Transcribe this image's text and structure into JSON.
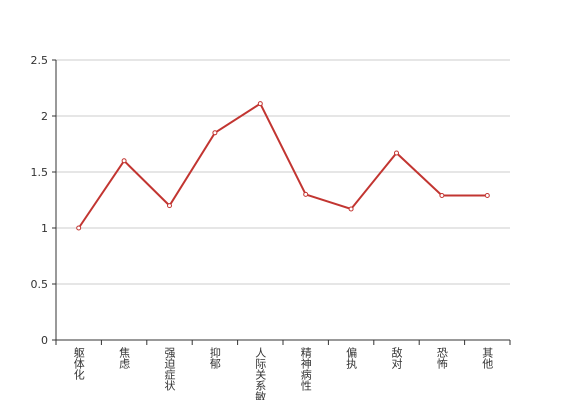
{
  "chart_data": {
    "type": "line",
    "categories": [
      "躯体化",
      "焦虑",
      "强迫症状",
      "抑郁",
      "人际关系敏感",
      "精神病性",
      "偏执",
      "敌对",
      "恐怖",
      "其他"
    ],
    "values": [
      1.0,
      1.6,
      1.2,
      1.85,
      2.11,
      1.3,
      1.17,
      1.67,
      1.29,
      1.29
    ],
    "color": "#c23531",
    "ylim": [
      0,
      2.5
    ],
    "yticks": [
      0,
      0.5,
      1,
      1.5,
      2,
      2.5
    ],
    "grid": true
  }
}
